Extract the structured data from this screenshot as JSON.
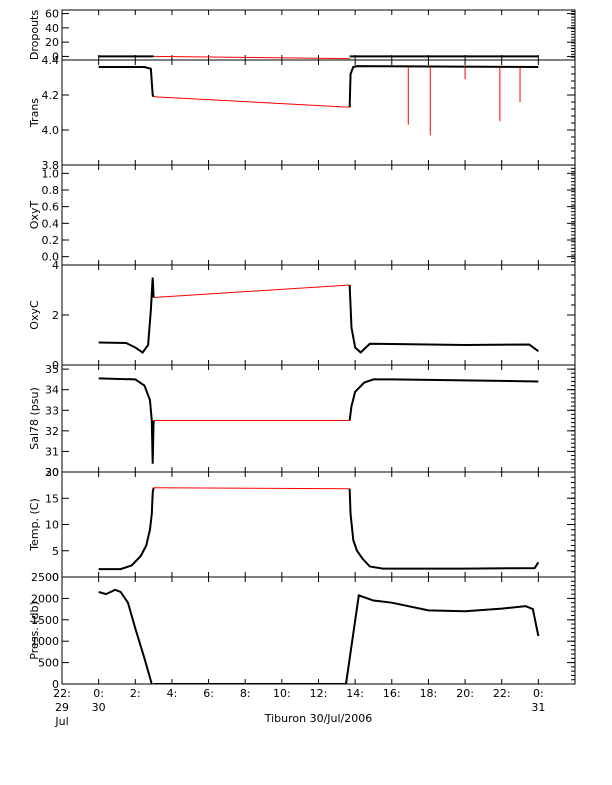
{
  "chart_data": {
    "type": "line",
    "xlabel": "Tiburon 30/Jul/2006",
    "xlim": [
      -2,
      26
    ],
    "x_ticks": [
      {
        "value": -2,
        "lines": [
          "22:",
          "29",
          "Jul"
        ]
      },
      {
        "value": 0,
        "lines": [
          "0:",
          "30"
        ]
      },
      {
        "value": 2,
        "lines": [
          "2:"
        ]
      },
      {
        "value": 4,
        "lines": [
          "4:"
        ]
      },
      {
        "value": 6,
        "lines": [
          "6:"
        ]
      },
      {
        "value": 8,
        "lines": [
          "8:"
        ]
      },
      {
        "value": 10,
        "lines": [
          "10:"
        ]
      },
      {
        "value": 12,
        "lines": [
          "12:"
        ]
      },
      {
        "value": 14,
        "lines": [
          "14:"
        ]
      },
      {
        "value": 16,
        "lines": [
          "16:"
        ]
      },
      {
        "value": 18,
        "lines": [
          "18:"
        ]
      },
      {
        "value": 20,
        "lines": [
          "20:"
        ]
      },
      {
        "value": 22,
        "lines": [
          "22:"
        ]
      },
      {
        "value": 24,
        "lines": [
          "0:",
          "31"
        ]
      }
    ],
    "colors": {
      "data": "#000000",
      "interp": "#ff0000",
      "axis": "#000000"
    },
    "panels": [
      {
        "ylabel": "Dropouts",
        "ylim": [
          -5,
          65
        ],
        "ticks": [
          0,
          20,
          40,
          60
        ],
        "tick_labels": [
          "0",
          "20",
          "40",
          "60"
        ],
        "series": [
          {
            "x": [
              0,
              3
            ],
            "y": [
              0,
              0
            ]
          },
          {
            "x": [
              13.7,
              24
            ],
            "y": [
              0,
              0
            ]
          }
        ],
        "interp": [
          {
            "x": [
              3,
              13.7
            ],
            "y": [
              0,
              -3
            ]
          }
        ]
      },
      {
        "ylabel": "Trans",
        "ylim": [
          3.8,
          4.4
        ],
        "ticks": [
          3.8,
          4.0,
          4.2,
          4.4
        ],
        "tick_labels": [
          "3.8",
          "4.0",
          "4.2",
          "4.4"
        ],
        "series": [
          {
            "x": [
              0,
              2.5,
              2.85,
              2.95,
              3
            ],
            "y": [
              4.36,
              4.36,
              4.35,
              4.2,
              4.19
            ]
          },
          {
            "x": [
              13.7,
              13.75,
              13.9,
              14.1,
              24
            ],
            "y": [
              4.13,
              4.32,
              4.36,
              4.365,
              4.36
            ]
          }
        ],
        "interp": [
          {
            "x": [
              3,
              13.7
            ],
            "y": [
              4.19,
              4.13
            ]
          }
        ],
        "spikes": [
          [
            16.9,
            4.03
          ],
          [
            18.1,
            3.97
          ],
          [
            20.0,
            4.29
          ],
          [
            21.9,
            4.05
          ],
          [
            23.0,
            4.16
          ]
        ]
      },
      {
        "ylabel": "OxyT",
        "ylim": [
          -0.1,
          1.1
        ],
        "ticks": [
          0,
          0.2,
          0.4,
          0.6,
          0.8,
          1.0
        ],
        "tick_labels": [
          "0.0",
          "0.2",
          "0.4",
          "0.6",
          "0.8",
          "1.0"
        ],
        "series": [],
        "interp": []
      },
      {
        "ylabel": "OxyC",
        "ylim": [
          0,
          4
        ],
        "ticks": [
          0,
          2,
          4
        ],
        "tick_labels": [
          "0",
          "2",
          "4"
        ],
        "series": [
          {
            "x": [
              0,
              1.5,
              2.0,
              2.4,
              2.7,
              2.85,
              2.95,
              3
            ],
            "y": [
              0.9,
              0.88,
              0.7,
              0.5,
              0.8,
              2.2,
              3.5,
              2.7
            ]
          },
          {
            "x": [
              13.7,
              13.8,
              14.0,
              14.3,
              14.8,
              16,
              20,
              23.5,
              24
            ],
            "y": [
              3.2,
              1.5,
              0.7,
              0.5,
              0.85,
              0.84,
              0.8,
              0.82,
              0.55
            ]
          }
        ],
        "interp": [
          {
            "x": [
              3,
              13.7
            ],
            "y": [
              2.7,
              3.2
            ]
          }
        ]
      },
      {
        "ylabel": "Sal78 (psu)",
        "ylim": [
          30,
          35.2
        ],
        "ticks": [
          30,
          31,
          32,
          33,
          34,
          35
        ],
        "tick_labels": [
          "30",
          "31",
          "32",
          "33",
          "34",
          "35"
        ],
        "series": [
          {
            "x": [
              0,
              2.0,
              2.5,
              2.8,
              2.9,
              2.95,
              3
            ],
            "y": [
              34.55,
              34.5,
              34.2,
              33.5,
              32.5,
              30.4,
              32.5
            ]
          },
          {
            "x": [
              13.7,
              13.8,
              14.0,
              14.5,
              15.0,
              16,
              20,
              24
            ],
            "y": [
              32.5,
              33.2,
              33.9,
              34.35,
              34.5,
              34.5,
              34.45,
              34.4
            ]
          }
        ],
        "interp": [
          {
            "x": [
              3,
              13.7
            ],
            "y": [
              32.5,
              32.5
            ]
          }
        ]
      },
      {
        "ylabel": "Temp. (C)",
        "ylim": [
          0,
          20
        ],
        "ticks": [
          0,
          5,
          10,
          15,
          20
        ],
        "tick_labels": [
          "0",
          "5",
          "10",
          "15",
          "20"
        ],
        "series": [
          {
            "x": [
              0,
              1.2,
              1.8,
              2.3,
              2.6,
              2.8,
              2.9,
              2.95,
              3
            ],
            "y": [
              1.5,
              1.5,
              2.2,
              4,
              6,
              9,
              12,
              16,
              17
            ]
          },
          {
            "x": [
              13.7,
              13.75,
              13.9,
              14.1,
              14.4,
              14.8,
              15.5,
              20,
              23.8,
              24
            ],
            "y": [
              16.8,
              12,
              7,
              5,
              3.5,
              2,
              1.6,
              1.6,
              1.7,
              2.8
            ]
          }
        ],
        "interp": [
          {
            "x": [
              3,
              13.7
            ],
            "y": [
              17,
              16.8
            ]
          }
        ]
      },
      {
        "ylabel": "Press. (db)",
        "ylim": [
          0,
          2500
        ],
        "ticks": [
          0,
          500,
          1000,
          1500,
          2000,
          2500
        ],
        "tick_labels": [
          "0",
          "500",
          "1000",
          "1500",
          "2000",
          "2500"
        ],
        "series": [
          {
            "x": [
              0,
              0.4,
              0.9,
              1.2,
              1.6,
              2.0,
              2.5,
              2.9
            ],
            "y": [
              2150,
              2100,
              2200,
              2150,
              1900,
              1300,
              600,
              0
            ]
          },
          {
            "x": [
              3.0,
              13.5
            ],
            "y": [
              0,
              0
            ]
          },
          {
            "x": [
              13.5,
              14.2,
              15,
              16,
              18,
              20,
              22,
              23.3,
              23.7,
              24
            ],
            "y": [
              0,
              2070,
              1950,
              1900,
              1720,
              1700,
              1760,
              1820,
              1750,
              1120
            ]
          }
        ],
        "interp": []
      }
    ]
  }
}
